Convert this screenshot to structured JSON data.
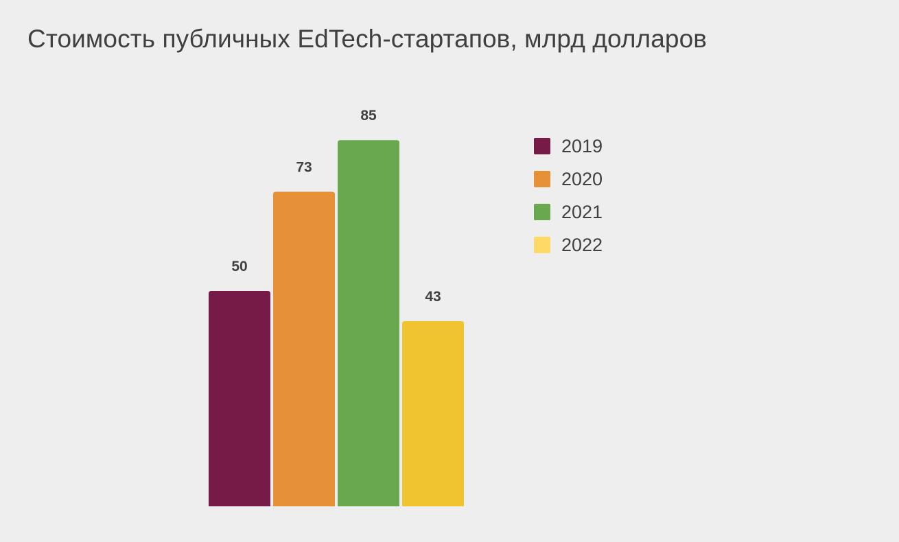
{
  "title": "Стоимость публичных EdTech-стартапов, млрд долларов",
  "chart_data": {
    "type": "bar",
    "title": "Стоимость публичных EdTech-стартапов, млрд долларов",
    "categories": [
      "2019",
      "2020",
      "2021",
      "2022"
    ],
    "values": [
      50,
      73,
      85,
      43
    ],
    "data_labels": [
      "50",
      "73",
      "85",
      "43"
    ],
    "colors": [
      "#761b47",
      "#e69138",
      "#6aa84f",
      "#f0c431"
    ],
    "legend": {
      "position": "right",
      "entries": [
        {
          "label": "2019",
          "color": "#761b47"
        },
        {
          "label": "2020",
          "color": "#e69138"
        },
        {
          "label": "2021",
          "color": "#6aa84f"
        },
        {
          "label": "2022",
          "color": "#ffd966"
        }
      ]
    },
    "xlabel": "",
    "ylabel": "",
    "ylim": [
      0,
      100
    ],
    "grid": false
  }
}
